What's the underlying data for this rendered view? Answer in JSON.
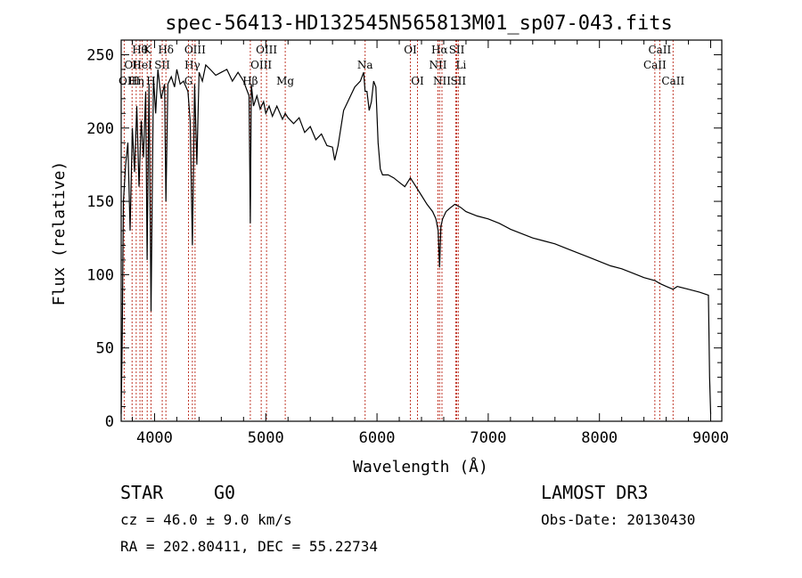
{
  "chart_data": {
    "type": "line",
    "title": "spec-56413-HD132545N565813M01_sp07-043.fits",
    "xlabel": "Wavelength (Å)",
    "ylabel": "Flux (relative)",
    "xlim": [
      3700,
      9100
    ],
    "ylim": [
      0,
      260
    ],
    "xticks": [
      4000,
      5000,
      6000,
      7000,
      8000,
      9000
    ],
    "yticks": [
      0,
      50,
      100,
      150,
      200,
      250
    ],
    "grid": false,
    "series": [
      {
        "name": "spectrum",
        "x": [
          3700,
          3710,
          3720,
          3740,
          3760,
          3780,
          3800,
          3820,
          3840,
          3860,
          3880,
          3900,
          3920,
          3933,
          3950,
          3968,
          3990,
          4010,
          4030,
          4060,
          4090,
          4102,
          4120,
          4150,
          4180,
          4200,
          4230,
          4260,
          4300,
          4320,
          4340,
          4360,
          4380,
          4400,
          4430,
          4460,
          4500,
          4550,
          4600,
          4650,
          4700,
          4750,
          4800,
          4830,
          4850,
          4861,
          4870,
          4890,
          4920,
          4950,
          4980,
          5000,
          5030,
          5060,
          5100,
          5150,
          5175,
          5200,
          5250,
          5300,
          5350,
          5400,
          5450,
          5500,
          5550,
          5600,
          5620,
          5650,
          5700,
          5750,
          5800,
          5850,
          5880,
          5893,
          5910,
          5930,
          5950,
          5970,
          5990,
          6010,
          6030,
          6050,
          6100,
          6150,
          6200,
          6250,
          6300,
          6350,
          6400,
          6450,
          6500,
          6530,
          6550,
          6563,
          6575,
          6590,
          6620,
          6650,
          6700,
          6750,
          6800,
          6900,
          7000,
          7100,
          7200,
          7300,
          7400,
          7500,
          7600,
          7700,
          7800,
          7900,
          8000,
          8100,
          8200,
          8300,
          8400,
          8498,
          8542,
          8600,
          8662,
          8700,
          8800,
          8900,
          8980,
          8990,
          9000
        ],
        "y": [
          5,
          60,
          150,
          175,
          190,
          130,
          200,
          170,
          215,
          160,
          205,
          180,
          225,
          110,
          230,
          75,
          235,
          210,
          240,
          220,
          230,
          150,
          230,
          235,
          228,
          240,
          230,
          232,
          225,
          205,
          120,
          230,
          175,
          238,
          232,
          243,
          240,
          236,
          238,
          240,
          232,
          238,
          232,
          226,
          222,
          135,
          230,
          215,
          222,
          213,
          218,
          210,
          215,
          208,
          215,
          206,
          210,
          207,
          203,
          207,
          197,
          201,
          192,
          196,
          188,
          187,
          178,
          188,
          212,
          220,
          228,
          232,
          238,
          225,
          225,
          212,
          218,
          232,
          228,
          190,
          172,
          168,
          168,
          166,
          163,
          160,
          166,
          160,
          154,
          148,
          143,
          138,
          130,
          105,
          133,
          138,
          143,
          145,
          148,
          146,
          143,
          140,
          138,
          135,
          131,
          128,
          125,
          123,
          121,
          118,
          115,
          112,
          109,
          106,
          104,
          101,
          98,
          96,
          94,
          92,
          90,
          92,
          90,
          88,
          86,
          30,
          5
        ]
      }
    ],
    "line_markers": [
      {
        "name": "Hθ",
        "wl": 3798,
        "label_row": 0,
        "label_align": "start"
      },
      {
        "name": "K",
        "wl": 3934,
        "label_row": 0,
        "label_align": "middle"
      },
      {
        "name": "Hδ",
        "wl": 4102,
        "label_row": 0,
        "label_align": "middle"
      },
      {
        "name": "OIII",
        "wl": 4364,
        "label_row": 0,
        "label_align": "middle"
      },
      {
        "name": "OIII",
        "wl": 5007,
        "label_row": 0,
        "label_align": "middle"
      },
      {
        "name": "OII",
        "wl": 3727,
        "label_row": 1,
        "label_align": "start"
      },
      {
        "name": "HeI",
        "wl": 3889,
        "label_row": 1,
        "label_align": "middle"
      },
      {
        "name": "SII",
        "wl": 4069,
        "label_row": 1,
        "label_align": "middle"
      },
      {
        "name": "Hγ",
        "wl": 4340,
        "label_row": 1,
        "label_align": "middle"
      },
      {
        "name": "OIII",
        "wl": 4959,
        "label_row": 1,
        "label_align": "middle"
      },
      {
        "name": "OIII",
        "wl": 3869,
        "label_row": 2,
        "label_align": "end"
      },
      {
        "name": "Hη",
        "wl": 3835,
        "label_row": 2,
        "label_align": "middle"
      },
      {
        "name": "H",
        "wl": 3968,
        "label_row": 2,
        "label_align": "middle"
      },
      {
        "name": "G",
        "wl": 4305,
        "label_row": 2,
        "label_align": "middle"
      },
      {
        "name": "Hβ",
        "wl": 4861,
        "label_row": 2,
        "label_align": "middle"
      },
      {
        "name": "Mg",
        "wl": 5175,
        "label_row": 2,
        "label_align": "middle"
      },
      {
        "name": "Na",
        "wl": 5893,
        "label_row": 1,
        "label_align": "middle"
      },
      {
        "name": "OI",
        "wl": 6300,
        "label_row": 0,
        "label_align": "middle"
      },
      {
        "name": "OI",
        "wl": 6364,
        "label_row": 2,
        "label_align": "middle"
      },
      {
        "name": "Hα",
        "wl": 6563,
        "label_row": 0,
        "label_align": "middle"
      },
      {
        "name": "NII",
        "wl": 6548,
        "label_row": 1,
        "label_align": "middle"
      },
      {
        "name": "NII",
        "wl": 6584,
        "label_row": 2,
        "label_align": "middle"
      },
      {
        "name": "SII",
        "wl": 6717,
        "label_row": 0,
        "label_align": "middle"
      },
      {
        "name": "Li",
        "wl": 6708,
        "label_row": 1,
        "label_align": "start"
      },
      {
        "name": "SII",
        "wl": 6731,
        "label_row": 2,
        "label_align": "middle"
      },
      {
        "name": "CaII",
        "wl": 8498,
        "label_row": 1,
        "label_align": "middle"
      },
      {
        "name": "CaII",
        "wl": 8542,
        "label_row": 0,
        "label_align": "middle"
      },
      {
        "name": "CaII",
        "wl": 8662,
        "label_row": 2,
        "label_align": "middle"
      }
    ]
  },
  "info": {
    "class": "STAR",
    "subclass": "G0",
    "survey": "LAMOST DR3",
    "cz": "cz = 46.0 ± 9.0 km/s",
    "obs_date": "Obs-Date: 20130430",
    "coords": "RA = 202.80411, DEC =  55.22734"
  },
  "colors": {
    "spectrum": "#000000",
    "marker": "#c0392b",
    "axis": "#000000"
  }
}
